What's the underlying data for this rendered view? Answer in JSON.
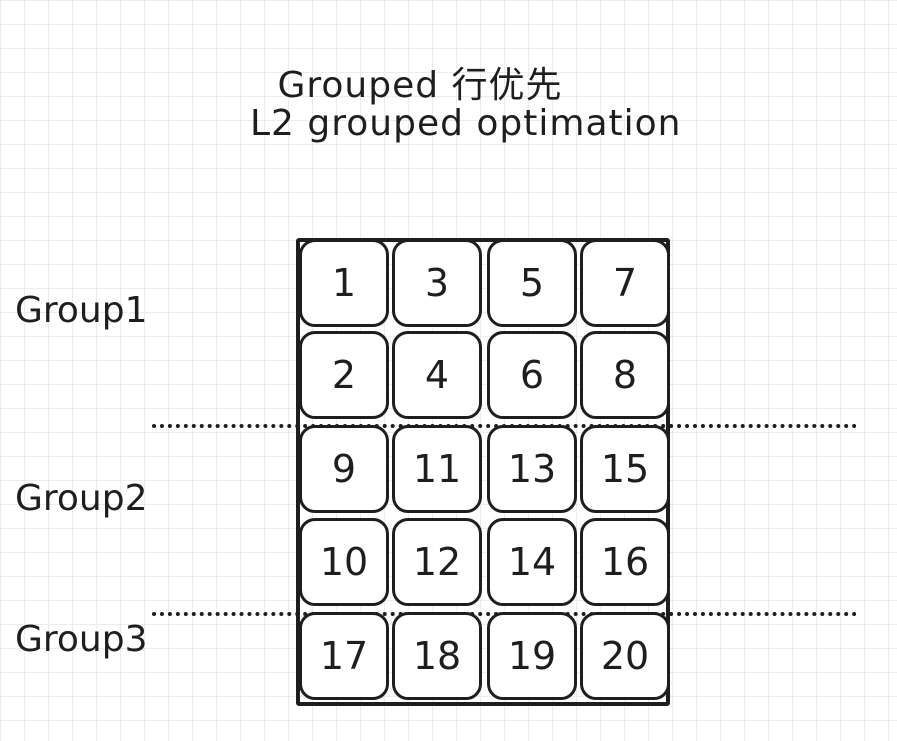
{
  "title": {
    "line1": "Grouped 行优先",
    "line2": "L2 grouped optimation"
  },
  "groups": [
    "Group1",
    "Group2",
    "Group3"
  ],
  "cells": [
    [
      "1",
      "3",
      "5",
      "7"
    ],
    [
      "2",
      "4",
      "6",
      "8"
    ],
    [
      "9",
      "11",
      "13",
      "15"
    ],
    [
      "10",
      "12",
      "14",
      "16"
    ],
    [
      "17",
      "18",
      "19",
      "20"
    ]
  ],
  "colors": {
    "ink": "#1e1e1e",
    "background": "#ffffff",
    "grid": "#ececec"
  }
}
